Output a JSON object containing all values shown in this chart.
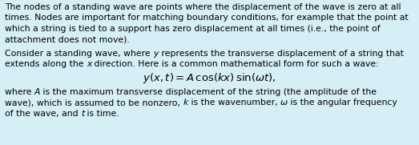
{
  "background_color": "#d6eef5",
  "text_color": "#000000",
  "font_size": 7.8,
  "formula_font_size": 9.5,
  "figsize": [
    5.23,
    1.81
  ],
  "dpi": 100,
  "para1_lines": [
    "The nodes of a standing wave are points where the displacement of the wave is zero at all",
    "times. Nodes are important for matching boundary conditions, for example that the point at",
    "which a string is tied to a support has zero displacement at all times (i.e., the point of",
    "attachment does not move)."
  ],
  "para2_line1": [
    [
      "Consider a standing wave, where ",
      "normal"
    ],
    [
      "y",
      "italic"
    ],
    [
      " represents the transverse displacement of a string that",
      "normal"
    ]
  ],
  "para2_line2": [
    [
      "extends along the ",
      "normal"
    ],
    [
      "x",
      "italic"
    ],
    [
      " direction. Here is a common mathematical form for such a wave:",
      "normal"
    ]
  ],
  "formula": "$y(x, t) = A\\,\\cos(kx)\\,\\sin(\\omega t),$",
  "para3_line1": [
    [
      "where ",
      "normal"
    ],
    [
      "A",
      "italic"
    ],
    [
      " is the maximum transverse displacement of the string (the amplitude of the",
      "normal"
    ]
  ],
  "para3_line2": [
    [
      "wave), which is assumed to be nonzero, ",
      "normal"
    ],
    [
      "k",
      "italic"
    ],
    [
      " is the wavenumber, ",
      "normal"
    ],
    [
      "ω",
      "italic"
    ],
    [
      " is the angular frequency",
      "normal"
    ]
  ],
  "para3_line3": [
    [
      "of the wave, and ",
      "normal"
    ],
    [
      "t",
      "italic"
    ],
    [
      " is time.",
      "normal"
    ]
  ]
}
